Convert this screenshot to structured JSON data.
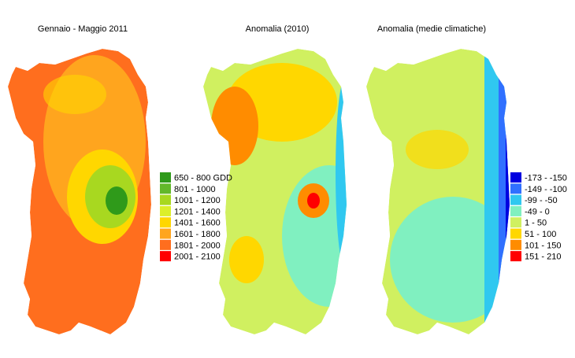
{
  "maps": [
    {
      "title": "Gennaio - Maggio 2011"
    },
    {
      "title": "Anomalia (2010)"
    },
    {
      "title": "Anomalia (medie climatiche)"
    }
  ],
  "legends": [
    {
      "items": [
        {
          "label": "650 - 800 GDD",
          "color": "#2f9a1a"
        },
        {
          "label": "801 - 1000",
          "color": "#62b82a"
        },
        {
          "label": "1001 - 1200",
          "color": "#a8d820"
        },
        {
          "label": "1201 - 1400",
          "color": "#dcef2a"
        },
        {
          "label": "1401 - 1600",
          "color": "#ffd700"
        },
        {
          "label": "1601 - 1800",
          "color": "#ffa51e"
        },
        {
          "label": "1801 - 2000",
          "color": "#ff6e1e"
        },
        {
          "label": "2001 - 2100",
          "color": "#ff0000"
        }
      ]
    },
    {
      "items": [
        {
          "label": "-173 - -150",
          "color": "#0000e0"
        },
        {
          "label": "-149 - -100",
          "color": "#3070ff"
        },
        {
          "label": "-99 - -50",
          "color": "#30c8f0"
        },
        {
          "label": "-49 - 0",
          "color": "#80f0c0"
        },
        {
          "label": "1 - 50",
          "color": "#d0f060"
        },
        {
          "label": "51 - 100",
          "color": "#ffd700"
        },
        {
          "label": "101 - 150",
          "color": "#ff8c00"
        },
        {
          "label": "151 - 210",
          "color": "#ff0000"
        }
      ]
    }
  ]
}
